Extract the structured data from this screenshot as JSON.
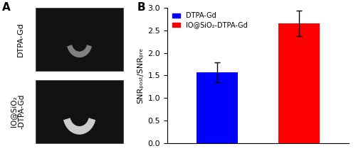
{
  "chart_data": {
    "type": "bar",
    "ylabel": "SNRₚₒₛₜ/SNRₚᵣₑ",
    "categories": [
      null,
      null
    ],
    "series": [
      {
        "name": "DTPA-Gd",
        "color": "#0000ff",
        "values": [
          1.57,
          null
        ],
        "errors": [
          0.22,
          null
        ]
      },
      {
        "name": "IO@SiO₂-DTPA-Gd",
        "color": "#ff0000",
        "values": [
          null,
          2.65
        ],
        "errors": [
          null,
          0.28
        ]
      }
    ],
    "ylim": [
      0,
      3.0
    ],
    "yticks": [
      0.0,
      0.5,
      1.0,
      1.5,
      2.0,
      2.5,
      3.0
    ],
    "legend": "upper left",
    "tick_labels": "y",
    "annotations": [
      "A",
      "B",
      "DTPA-Gd",
      "IO@SiO₂\n-DTPA-Gd"
    ]
  }
}
